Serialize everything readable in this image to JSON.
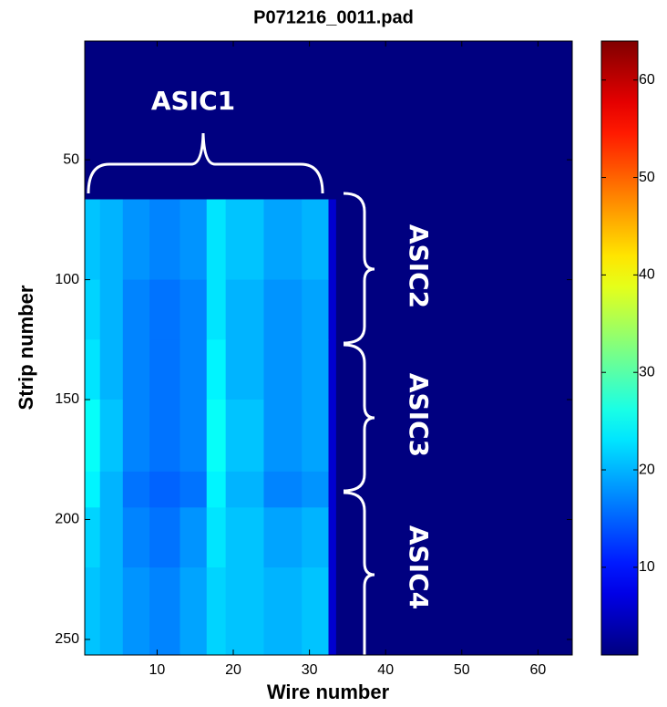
{
  "chart_data": {
    "type": "heatmap",
    "title": "P071216_0011.pad",
    "x_label": "Wire number",
    "y_label": "Strip number",
    "x_edges": [
      0.5,
      2.5,
      5.5,
      9,
      13,
      16.5,
      19,
      24,
      29,
      32.5,
      33.5,
      64.5
    ],
    "y_edges": [
      0.5,
      66.5,
      100,
      125,
      150,
      180,
      195,
      220,
      256.5
    ],
    "z": [
      [
        1,
        1,
        1,
        1,
        1,
        1,
        1,
        1,
        1,
        1,
        1
      ],
      [
        21,
        20,
        18,
        17,
        18,
        23,
        21,
        19,
        20,
        6,
        1
      ],
      [
        22,
        20,
        17,
        16,
        17,
        23,
        20,
        18,
        19,
        6,
        1
      ],
      [
        23,
        20,
        17,
        16,
        17,
        24,
        20,
        18,
        19,
        6,
        1
      ],
      [
        25,
        21,
        17,
        16,
        17,
        25,
        21,
        18,
        19,
        6,
        1
      ],
      [
        24,
        20,
        16,
        15,
        16,
        24,
        20,
        17,
        18,
        6,
        1
      ],
      [
        22,
        20,
        17,
        16,
        18,
        23,
        21,
        19,
        20,
        6,
        1
      ],
      [
        21,
        20,
        18,
        17,
        19,
        22,
        21,
        20,
        21,
        6,
        1
      ]
    ],
    "xlim": [
      0.5,
      64.5
    ],
    "xticks": [
      10,
      20,
      30,
      40,
      50,
      60
    ],
    "ylim": [
      0.5,
      256.5
    ],
    "yticks": [
      50,
      100,
      150,
      200,
      250
    ],
    "y_reversed": true,
    "colormap": "jet",
    "clim": [
      1,
      64
    ],
    "cticks": [
      10,
      20,
      30,
      40,
      50,
      60
    ],
    "annotations": [
      "ASIC1",
      "ASIC2",
      "ASIC3",
      "ASIC4"
    ]
  }
}
